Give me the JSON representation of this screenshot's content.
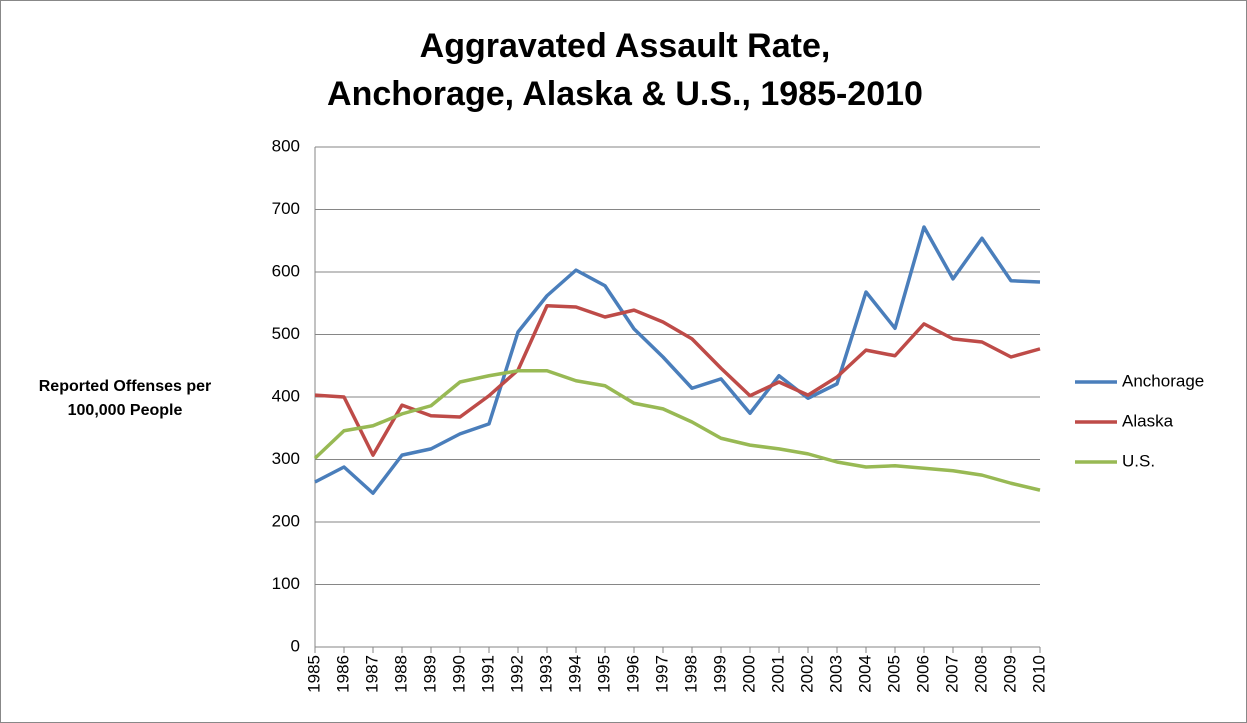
{
  "chart_data": {
    "type": "line",
    "title": [
      "Aggravated Assault Rate,",
      "Anchorage, Alaska & U.S., 1985-2010"
    ],
    "y_label": [
      "Reported Offenses per",
      "100,000 People"
    ],
    "categories": [
      "1985",
      "1986",
      "1987",
      "1988",
      "1989",
      "1990",
      "1991",
      "1992",
      "1993",
      "1994",
      "1995",
      "1996",
      "1997",
      "1998",
      "1999",
      "2000",
      "2001",
      "2002",
      "2003",
      "2004",
      "2005",
      "2006",
      "2007",
      "2008",
      "2009",
      "2010"
    ],
    "series": [
      {
        "name": "Anchorage",
        "color": "#4a7ebb",
        "values": [
          264,
          288,
          246,
          307,
          317,
          341,
          357,
          504,
          562,
          603,
          578,
          509,
          464,
          414,
          429,
          374,
          434,
          398,
          421,
          568,
          510,
          672,
          589,
          654,
          586,
          584
        ]
      },
      {
        "name": "Alaska",
        "color": "#be4b48",
        "values": [
          403,
          400,
          307,
          387,
          370,
          368,
          402,
          443,
          546,
          544,
          528,
          539,
          520,
          493,
          446,
          402,
          424,
          403,
          432,
          475,
          466,
          517,
          493,
          488,
          464,
          477
        ]
      },
      {
        "name": "U.S.",
        "color": "#98b954",
        "values": [
          302,
          346,
          354,
          373,
          386,
          424,
          434,
          442,
          442,
          426,
          418,
          390,
          381,
          360,
          334,
          323,
          317,
          309,
          296,
          288,
          290,
          286,
          282,
          275,
          262,
          251
        ]
      }
    ],
    "ylim": [
      0,
      800
    ],
    "yticks": [
      0,
      100,
      200,
      300,
      400,
      500,
      600,
      700,
      800
    ],
    "grid": true,
    "legend": "right"
  }
}
